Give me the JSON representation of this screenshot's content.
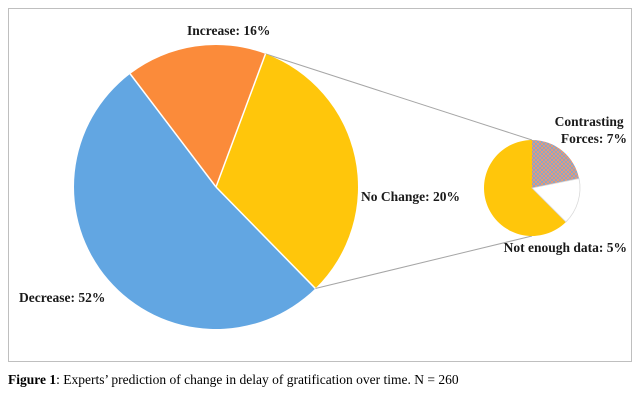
{
  "chart_data": {
    "type": "pie",
    "variant": "pie-of-pie",
    "slices": [
      {
        "label": "Decrease: 52%",
        "value": 52,
        "color": "#62a6e2"
      },
      {
        "label": "Increase: 16%",
        "value": 16,
        "color": "#fb8b3a"
      },
      {
        "label": "No Change: 20%",
        "value": 20,
        "color": "#ffc60b"
      },
      {
        "label": "Contrasting Forces: 7%",
        "value": 7,
        "color": "#e79a77",
        "pattern": "checkered"
      },
      {
        "label": "Not enough data: 5%",
        "value": 5,
        "color": "#ffffff"
      }
    ],
    "secondary_breakdown": [
      "No Change: 20%",
      "Contrasting Forces: 7%",
      "Not enough data: 5%"
    ],
    "legend": "none",
    "grid": false
  },
  "figure": {
    "caption_prefix": "Figure 1",
    "caption_text": ": Experts’ prediction of change in delay of gratification over time. N = 260"
  }
}
